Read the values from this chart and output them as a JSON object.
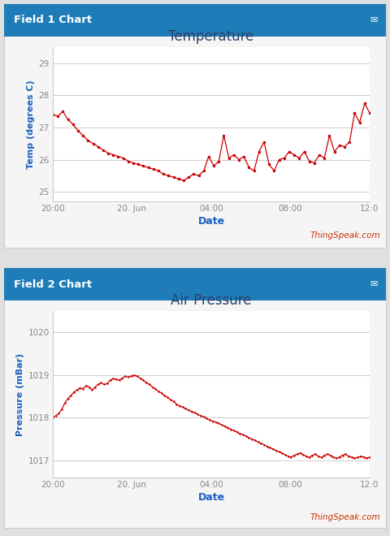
{
  "fig_width": 4.8,
  "fig_height": 6.6,
  "fig_bg": "#e0e0e0",
  "panel_bg": "#f5f5f5",
  "chart_bg": "#ffffff",
  "header_bg": "#1e7db8",
  "header_text": "white",
  "header1": "Field 1 Chart",
  "header2": "Field 2 Chart",
  "title1": "Temperature",
  "title2": "Air Pressure",
  "ylabel1": "Temp (degrees C)",
  "ylabel2": "Pressure (mBar)",
  "xlabel": "Date",
  "xtick_labels": [
    "20:00",
    "20. Jun",
    "04:00",
    "08:00",
    "12:0"
  ],
  "yticks1": [
    25,
    26,
    27,
    28,
    29
  ],
  "ylim1": [
    24.7,
    29.5
  ],
  "yticks2": [
    1017,
    1018,
    1019,
    1020
  ],
  "ylim2": [
    1016.6,
    1020.5
  ],
  "line_color": "#cc0000",
  "axis_label_color": "#1a60c0",
  "title_color": "#2c3e6b",
  "thingspeak_color": "#cc3300",
  "thingspeak_text": "ThingSpeak.com",
  "grid_color": "#cccccc",
  "tick_color": "#888888",
  "border_color": "#cccccc",
  "temp_y": [
    27.4,
    27.35,
    27.5,
    27.25,
    27.1,
    26.9,
    26.75,
    26.6,
    26.5,
    26.4,
    26.3,
    26.2,
    26.15,
    26.1,
    26.05,
    25.95,
    25.9,
    25.85,
    25.8,
    25.75,
    25.7,
    25.65,
    25.55,
    25.5,
    25.45,
    25.4,
    25.35,
    25.45,
    25.55,
    25.5,
    25.65,
    26.1,
    25.8,
    25.95,
    26.75,
    26.05,
    26.15,
    26.0,
    26.1,
    25.75,
    25.65,
    26.25,
    26.55,
    25.85,
    25.65,
    26.0,
    26.05,
    26.25,
    26.15,
    26.05,
    26.25,
    25.95,
    25.9,
    26.15,
    26.05,
    26.75,
    26.25,
    26.45,
    26.4,
    26.55,
    27.45,
    27.15,
    27.75,
    27.45
  ],
  "pres_y": [
    1018.0,
    1018.05,
    1018.1,
    1018.2,
    1018.35,
    1018.45,
    1018.52,
    1018.6,
    1018.65,
    1018.7,
    1018.68,
    1018.75,
    1018.72,
    1018.65,
    1018.72,
    1018.78,
    1018.82,
    1018.78,
    1018.8,
    1018.88,
    1018.92,
    1018.9,
    1018.88,
    1018.93,
    1018.97,
    1018.95,
    1018.98,
    1019.0,
    1018.97,
    1018.93,
    1018.88,
    1018.82,
    1018.78,
    1018.72,
    1018.68,
    1018.62,
    1018.58,
    1018.52,
    1018.48,
    1018.42,
    1018.38,
    1018.32,
    1018.28,
    1018.25,
    1018.22,
    1018.18,
    1018.15,
    1018.12,
    1018.08,
    1018.05,
    1018.02,
    1017.98,
    1017.95,
    1017.92,
    1017.9,
    1017.87,
    1017.83,
    1017.8,
    1017.77,
    1017.73,
    1017.7,
    1017.67,
    1017.63,
    1017.6,
    1017.57,
    1017.53,
    1017.5,
    1017.47,
    1017.43,
    1017.4,
    1017.37,
    1017.33,
    1017.3,
    1017.27,
    1017.23,
    1017.2,
    1017.17,
    1017.13,
    1017.1,
    1017.08,
    1017.12,
    1017.15,
    1017.18,
    1017.13,
    1017.1,
    1017.07,
    1017.12,
    1017.15,
    1017.1,
    1017.07,
    1017.12,
    1017.15,
    1017.12,
    1017.08,
    1017.05,
    1017.08,
    1017.12,
    1017.15,
    1017.1,
    1017.08,
    1017.05,
    1017.07,
    1017.1,
    1017.08,
    1017.05,
    1017.08
  ]
}
